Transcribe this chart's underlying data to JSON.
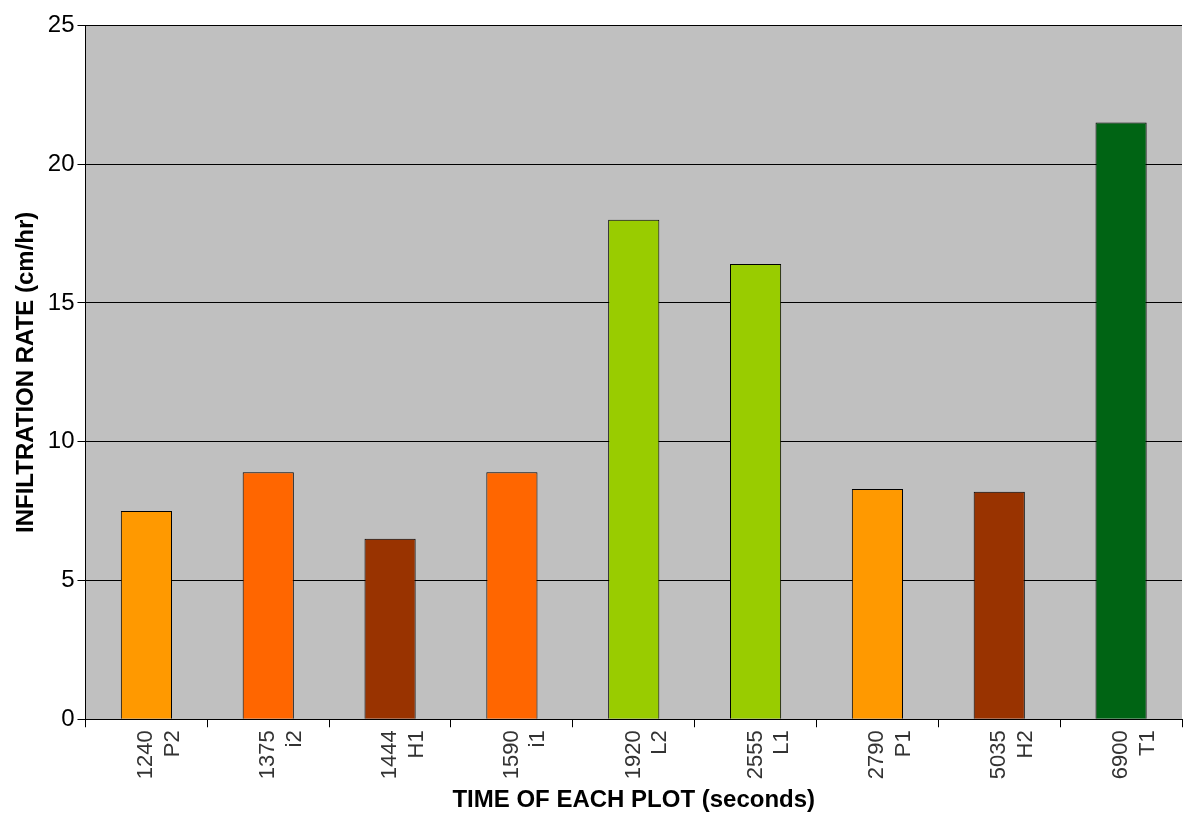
{
  "chart_data": {
    "type": "bar",
    "xlabel": "TIME OF EACH PLOT (seconds)",
    "ylabel": "INFILTRATION RATE (cm/hr)",
    "categories": [
      "1240\nP2",
      "1375\ni2",
      "1444\nH1",
      "1590\ni1",
      "1920\nL2",
      "2555\nL1",
      "2790\nP1",
      "5035\nH2",
      "6900\nT1"
    ],
    "values": [
      7.5,
      8.9,
      6.5,
      8.9,
      18.0,
      16.4,
      8.3,
      8.2,
      21.5
    ],
    "colors": [
      "#ff9900",
      "#ff6600",
      "#993300",
      "#ff6600",
      "#99cc00",
      "#99cc00",
      "#ff9900",
      "#993300",
      "#006414"
    ],
    "ylim": [
      0,
      25
    ],
    "yticks": [
      0,
      5,
      10,
      15,
      20,
      25
    ],
    "grid": "y",
    "legend": false
  }
}
